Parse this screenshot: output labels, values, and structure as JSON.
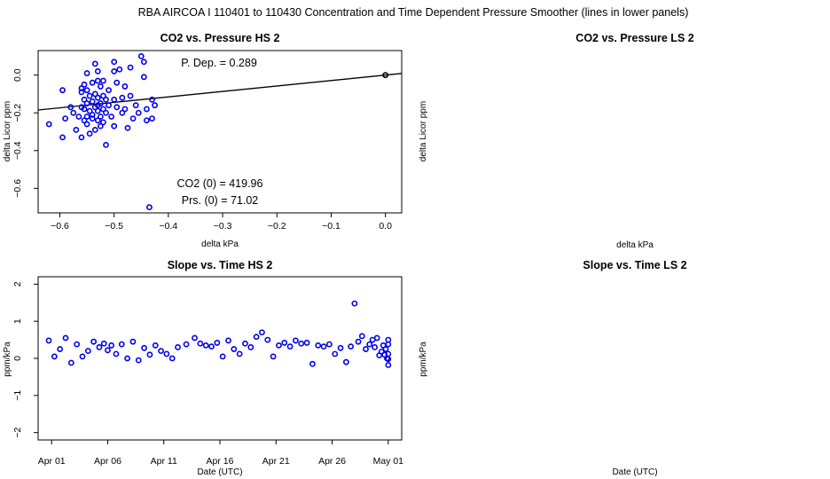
{
  "figure": {
    "title": "RBA   AIRCOA I   110401 to 110430   Concentration and Time Dependent Pressure Smoother (lines in lower panels)"
  },
  "panels": {
    "p1": {
      "title": "CO2 vs. Pressure HS 2",
      "xlabel": "delta kPa",
      "ylabel": "delta Licor ppm",
      "xticks": [
        "−0.6",
        "−0.5",
        "−0.4",
        "−0.3",
        "−0.2",
        "−0.1",
        "0.0"
      ],
      "yticks": [
        "0.0",
        "−0.2",
        "−0.4",
        "−0.6"
      ],
      "annot_pdep": "P. Dep. =  0.289",
      "annot_co2": "CO2 (0) =  419.96",
      "annot_prs": "Prs. (0) =  71.02"
    },
    "p2": {
      "title": "CO2 vs. Pressure LS 2",
      "xlabel": "delta kPa",
      "ylabel": "delta Licor ppm"
    },
    "p3": {
      "title": "Slope vs. Time HS 2",
      "xlabel": "Date (UTC)",
      "ylabel": "ppm/kPa",
      "xticks": [
        "Apr 01",
        "Apr 06",
        "Apr 11",
        "Apr 16",
        "Apr 21",
        "Apr 26",
        "May 01"
      ],
      "yticks": [
        "2",
        "1",
        "0",
        "−1",
        "−2"
      ]
    },
    "p4": {
      "title": "Slope vs. Time LS 2",
      "xlabel": "Date (UTC)",
      "ylabel": "ppm/kPa"
    }
  },
  "chart_data": [
    {
      "type": "scatter",
      "title": "CO2 vs. Pressure HS 2",
      "xlabel": "delta kPa",
      "ylabel": "delta Licor ppm",
      "xlim": [
        -0.64,
        0.03
      ],
      "ylim": [
        -0.73,
        0.13
      ],
      "grid": false,
      "point_color": "#0000ee",
      "fit_line": {
        "slope": 0.289,
        "intercept": 0.0,
        "color": "#000000"
      },
      "origin_point": [
        0.0,
        0.0
      ],
      "points": [
        [
          -0.62,
          -0.26
        ],
        [
          -0.595,
          -0.08
        ],
        [
          -0.595,
          -0.33
        ],
        [
          -0.59,
          -0.23
        ],
        [
          -0.58,
          -0.17
        ],
        [
          -0.575,
          -0.2
        ],
        [
          -0.57,
          -0.29
        ],
        [
          -0.565,
          -0.22
        ],
        [
          -0.56,
          -0.07
        ],
        [
          -0.56,
          -0.09
        ],
        [
          -0.56,
          -0.17
        ],
        [
          -0.56,
          -0.33
        ],
        [
          -0.555,
          -0.05
        ],
        [
          -0.555,
          -0.13
        ],
        [
          -0.555,
          -0.18
        ],
        [
          -0.555,
          -0.24
        ],
        [
          -0.55,
          0.01
        ],
        [
          -0.55,
          -0.08
        ],
        [
          -0.55,
          -0.15
        ],
        [
          -0.55,
          -0.22
        ],
        [
          -0.55,
          -0.26
        ],
        [
          -0.545,
          -0.11
        ],
        [
          -0.545,
          -0.19
        ],
        [
          -0.545,
          -0.31
        ],
        [
          -0.54,
          -0.04
        ],
        [
          -0.54,
          -0.14
        ],
        [
          -0.54,
          -0.21
        ],
        [
          -0.54,
          -0.23
        ],
        [
          -0.535,
          0.06
        ],
        [
          -0.535,
          -0.1
        ],
        [
          -0.535,
          -0.17
        ],
        [
          -0.535,
          -0.29
        ],
        [
          -0.53,
          0.02
        ],
        [
          -0.53,
          -0.03
        ],
        [
          -0.53,
          -0.12
        ],
        [
          -0.53,
          -0.16
        ],
        [
          -0.53,
          -0.19
        ],
        [
          -0.53,
          -0.24
        ],
        [
          -0.525,
          -0.06
        ],
        [
          -0.525,
          -0.15
        ],
        [
          -0.525,
          -0.22
        ],
        [
          -0.525,
          -0.27
        ],
        [
          -0.52,
          -0.03
        ],
        [
          -0.52,
          -0.11
        ],
        [
          -0.52,
          -0.18
        ],
        [
          -0.52,
          -0.25
        ],
        [
          -0.515,
          -0.13
        ],
        [
          -0.515,
          -0.2
        ],
        [
          -0.515,
          -0.37
        ],
        [
          -0.51,
          -0.08
        ],
        [
          -0.51,
          -0.16
        ],
        [
          -0.505,
          -0.22
        ],
        [
          -0.5,
          0.02
        ],
        [
          -0.5,
          0.07
        ],
        [
          -0.5,
          -0.13
        ],
        [
          -0.5,
          -0.27
        ],
        [
          -0.495,
          -0.04
        ],
        [
          -0.495,
          -0.17
        ],
        [
          -0.49,
          0.03
        ],
        [
          -0.485,
          -0.12
        ],
        [
          -0.485,
          -0.2
        ],
        [
          -0.48,
          -0.06
        ],
        [
          -0.48,
          -0.18
        ],
        [
          -0.475,
          -0.28
        ],
        [
          -0.47,
          0.04
        ],
        [
          -0.47,
          -0.11
        ],
        [
          -0.465,
          -0.23
        ],
        [
          -0.46,
          -0.16
        ],
        [
          -0.455,
          -0.2
        ],
        [
          -0.45,
          0.1
        ],
        [
          -0.445,
          0.07
        ],
        [
          -0.445,
          -0.01
        ],
        [
          -0.44,
          -0.18
        ],
        [
          -0.44,
          -0.24
        ],
        [
          -0.435,
          -0.7
        ],
        [
          -0.43,
          -0.13
        ],
        [
          -0.43,
          -0.23
        ],
        [
          -0.425,
          -0.16
        ]
      ]
    },
    {
      "type": "scatter",
      "title": "Slope vs. Time HS 2",
      "xlabel": "Date (UTC)",
      "ylabel": "ppm/kPa",
      "x_range_dates": [
        "Apr 01",
        "May 01"
      ],
      "ylim": [
        -2.2,
        2.2
      ],
      "grid": false,
      "point_color": "#0000ee",
      "points": [
        [
          "Apr 01",
          0.48
        ],
        [
          "Apr 01",
          0.05
        ],
        [
          "Apr 02",
          0.25
        ],
        [
          "Apr 02",
          0.55
        ],
        [
          "Apr 03",
          -0.12
        ],
        [
          "Apr 03",
          0.38
        ],
        [
          "Apr 04",
          0.05
        ],
        [
          "Apr 04",
          0.2
        ],
        [
          "Apr 05",
          0.45
        ],
        [
          "Apr 05",
          0.3
        ],
        [
          "Apr 06",
          0.4
        ],
        [
          "Apr 06",
          0.22
        ],
        [
          "Apr 06",
          0.35
        ],
        [
          "Apr 07",
          0.12
        ],
        [
          "Apr 07",
          0.38
        ],
        [
          "Apr 08",
          0.0
        ],
        [
          "Apr 08",
          0.45
        ],
        [
          "Apr 09",
          -0.05
        ],
        [
          "Apr 09",
          0.28
        ],
        [
          "Apr 10",
          0.1
        ],
        [
          "Apr 10",
          0.35
        ],
        [
          "Apr 11",
          0.2
        ],
        [
          "Apr 11",
          0.12
        ],
        [
          "Apr 12",
          0.0
        ],
        [
          "Apr 12",
          0.3
        ],
        [
          "Apr 13",
          0.38
        ],
        [
          "Apr 14",
          0.55
        ],
        [
          "Apr 14",
          0.4
        ],
        [
          "Apr 15",
          0.35
        ],
        [
          "Apr 15",
          0.32
        ],
        [
          "Apr 16",
          0.42
        ],
        [
          "Apr 16",
          0.05
        ],
        [
          "Apr 17",
          0.48
        ],
        [
          "Apr 17",
          0.25
        ],
        [
          "Apr 18",
          0.12
        ],
        [
          "Apr 18",
          0.4
        ],
        [
          "Apr 19",
          0.3
        ],
        [
          "Apr 19",
          0.58
        ],
        [
          "Apr 20",
          0.7
        ],
        [
          "Apr 20",
          0.5
        ],
        [
          "Apr 21",
          0.05
        ],
        [
          "Apr 21",
          0.35
        ],
        [
          "Apr 22",
          0.42
        ],
        [
          "Apr 22",
          0.32
        ],
        [
          "Apr 23",
          0.48
        ],
        [
          "Apr 23",
          0.4
        ],
        [
          "Apr 24",
          0.42
        ],
        [
          "Apr 24",
          -0.15
        ],
        [
          "Apr 25",
          0.35
        ],
        [
          "Apr 25",
          0.32
        ],
        [
          "Apr 26",
          0.38
        ],
        [
          "Apr 26",
          0.12
        ],
        [
          "Apr 27",
          0.28
        ],
        [
          "Apr 27",
          -0.1
        ],
        [
          "Apr 28",
          0.32
        ],
        [
          "Apr 28",
          1.48
        ],
        [
          "Apr 28",
          0.45
        ],
        [
          "Apr 29",
          0.6
        ],
        [
          "Apr 29",
          0.25
        ],
        [
          "Apr 29",
          0.38
        ],
        [
          "Apr 30",
          0.5
        ],
        [
          "Apr 30",
          0.3
        ],
        [
          "Apr 30",
          0.55
        ],
        [
          "Apr 30",
          0.08
        ],
        [
          "Apr 30",
          0.18
        ],
        [
          "May 01",
          0.35
        ],
        [
          "May 01",
          0.1
        ],
        [
          "May 01",
          0.25
        ],
        [
          "May 01",
          0.0
        ],
        [
          "May 01",
          0.38
        ],
        [
          "May 01",
          -0.02
        ],
        [
          "May 01",
          0.12
        ],
        [
          "May 01",
          0.5
        ],
        [
          "May 01",
          -0.18
        ]
      ]
    },
    {
      "type": "scatter",
      "title": "CO2 vs. Pressure LS 2",
      "xlabel": "delta kPa",
      "ylabel": "delta Licor ppm",
      "points": []
    },
    {
      "type": "scatter",
      "title": "Slope vs. Time LS 2",
      "xlabel": "Date (UTC)",
      "ylabel": "ppm/kPa",
      "points": []
    }
  ]
}
